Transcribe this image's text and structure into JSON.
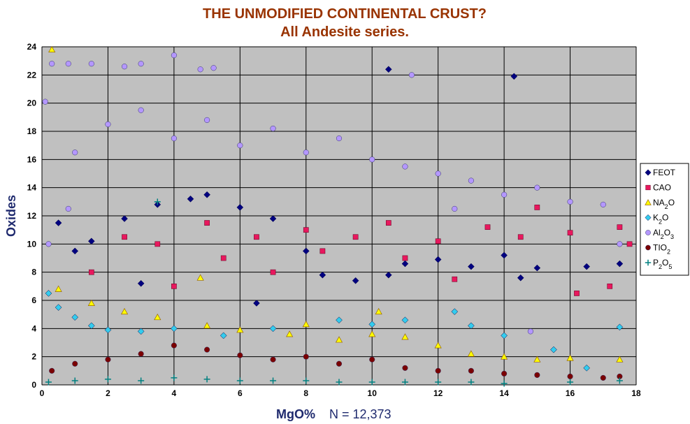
{
  "chart_data": {
    "type": "scatter",
    "title": "THE UNMODIFIED CONTINENTAL CRUST?",
    "subtitle": "All Andesite series.",
    "xlabel": "MgO%",
    "xlabel_note": "N = 12,373",
    "ylabel": "Oxides",
    "xlim": [
      0,
      18
    ],
    "ylim": [
      0,
      24
    ],
    "x_ticks": [
      0,
      2,
      4,
      6,
      8,
      10,
      12,
      14,
      16,
      18
    ],
    "y_ticks": [
      0,
      2,
      4,
      6,
      8,
      10,
      12,
      14,
      16,
      18,
      20,
      22,
      24
    ],
    "grid": true,
    "plot_background": "#c0c0c0",
    "legend_position": "right",
    "series": [
      {
        "name": "FEOT",
        "marker": "diamond",
        "color": "#000080",
        "points": [
          [
            0.5,
            11.5
          ],
          [
            1.5,
            10.2
          ],
          [
            2.5,
            11.8
          ],
          [
            3.5,
            12.8
          ],
          [
            4.5,
            13.2
          ],
          [
            5.0,
            13.5
          ],
          [
            6.0,
            12.6
          ],
          [
            7.0,
            11.8
          ],
          [
            8.0,
            9.5
          ],
          [
            8.5,
            7.8
          ],
          [
            9.5,
            7.4
          ],
          [
            10.5,
            7.8
          ],
          [
            11.0,
            8.6
          ],
          [
            12.0,
            8.9
          ],
          [
            13.0,
            8.4
          ],
          [
            14.0,
            9.2
          ],
          [
            14.5,
            7.6
          ],
          [
            15.0,
            8.3
          ],
          [
            16.5,
            8.4
          ],
          [
            17.5,
            8.6
          ],
          [
            10.5,
            22.4
          ],
          [
            14.3,
            21.9
          ],
          [
            1.0,
            9.5
          ],
          [
            3.0,
            7.2
          ],
          [
            6.5,
            5.8
          ]
        ]
      },
      {
        "name": "CAO",
        "marker": "square",
        "color": "#e8185e",
        "points": [
          [
            1.5,
            8.0
          ],
          [
            2.5,
            10.5
          ],
          [
            3.5,
            10.0
          ],
          [
            4.0,
            7.0
          ],
          [
            5.0,
            11.5
          ],
          [
            5.5,
            9.0
          ],
          [
            6.5,
            10.5
          ],
          [
            7.0,
            8.0
          ],
          [
            8.0,
            11.0
          ],
          [
            8.5,
            9.5
          ],
          [
            9.5,
            10.5
          ],
          [
            10.5,
            11.5
          ],
          [
            11.0,
            9.0
          ],
          [
            12.0,
            10.2
          ],
          [
            12.5,
            7.5
          ],
          [
            13.5,
            11.2
          ],
          [
            14.5,
            10.5
          ],
          [
            15.0,
            12.6
          ],
          [
            16.0,
            10.8
          ],
          [
            17.5,
            11.2
          ],
          [
            17.8,
            10.0
          ],
          [
            17.2,
            7.0
          ],
          [
            16.2,
            6.5
          ]
        ]
      },
      {
        "name": "NA2O",
        "marker": "triangle",
        "color": "#ffff00",
        "points": [
          [
            0.3,
            23.8
          ],
          [
            0.5,
            6.8
          ],
          [
            1.5,
            5.8
          ],
          [
            2.5,
            5.2
          ],
          [
            3.5,
            4.8
          ],
          [
            5.0,
            4.2
          ],
          [
            6.0,
            3.9
          ],
          [
            7.5,
            3.6
          ],
          [
            8.0,
            4.3
          ],
          [
            9.0,
            3.2
          ],
          [
            10.0,
            3.6
          ],
          [
            11.0,
            3.4
          ],
          [
            12.0,
            2.8
          ],
          [
            13.0,
            2.2
          ],
          [
            14.0,
            2.0
          ],
          [
            15.0,
            1.8
          ],
          [
            16.0,
            1.9
          ],
          [
            17.5,
            1.8
          ],
          [
            4.8,
            7.6
          ],
          [
            10.2,
            5.2
          ]
        ]
      },
      {
        "name": "K2O",
        "marker": "diamond",
        "color": "#33ccee",
        "points": [
          [
            0.2,
            6.5
          ],
          [
            0.5,
            5.5
          ],
          [
            1.0,
            4.8
          ],
          [
            1.5,
            4.2
          ],
          [
            2.0,
            3.9
          ],
          [
            3.0,
            3.8
          ],
          [
            4.0,
            4.0
          ],
          [
            5.5,
            3.5
          ],
          [
            7.0,
            4.0
          ],
          [
            9.0,
            4.6
          ],
          [
            10.0,
            4.3
          ],
          [
            11.0,
            4.6
          ],
          [
            12.5,
            5.2
          ],
          [
            13.0,
            4.2
          ],
          [
            14.0,
            3.5
          ],
          [
            15.5,
            2.5
          ],
          [
            17.5,
            4.1
          ],
          [
            16.5,
            1.2
          ]
        ]
      },
      {
        "name": "AL2O3",
        "marker": "circle",
        "color": "#b497ff",
        "points": [
          [
            0.1,
            20.1
          ],
          [
            0.3,
            22.8
          ],
          [
            0.8,
            22.8
          ],
          [
            1.5,
            22.8
          ],
          [
            2.5,
            22.6
          ],
          [
            3.0,
            22.8
          ],
          [
            4.0,
            23.4
          ],
          [
            4.8,
            22.4
          ],
          [
            5.2,
            22.5
          ],
          [
            1.0,
            16.5
          ],
          [
            2.0,
            18.5
          ],
          [
            3.0,
            19.5
          ],
          [
            4.0,
            17.5
          ],
          [
            5.0,
            18.8
          ],
          [
            6.0,
            17.0
          ],
          [
            7.0,
            18.2
          ],
          [
            8.0,
            16.5
          ],
          [
            9.0,
            17.5
          ],
          [
            10.0,
            16.0
          ],
          [
            11.0,
            15.5
          ],
          [
            11.2,
            22.0
          ],
          [
            12.0,
            15.0
          ],
          [
            13.0,
            14.5
          ],
          [
            14.0,
            13.5
          ],
          [
            15.0,
            14.0
          ],
          [
            16.0,
            13.0
          ],
          [
            17.0,
            12.8
          ],
          [
            17.5,
            10.0
          ],
          [
            14.8,
            3.8
          ],
          [
            0.2,
            10.0
          ],
          [
            0.8,
            12.5
          ],
          [
            12.5,
            12.5
          ]
        ]
      },
      {
        "name": "TIO2",
        "marker": "circle",
        "color": "#7b0000",
        "points": [
          [
            0.3,
            1.0
          ],
          [
            1.0,
            1.5
          ],
          [
            2.0,
            1.8
          ],
          [
            3.0,
            2.2
          ],
          [
            4.0,
            2.8
          ],
          [
            5.0,
            2.5
          ],
          [
            6.0,
            2.1
          ],
          [
            7.0,
            1.8
          ],
          [
            8.0,
            2.0
          ],
          [
            9.0,
            1.5
          ],
          [
            10.0,
            1.8
          ],
          [
            11.0,
            1.2
          ],
          [
            12.0,
            1.0
          ],
          [
            13.0,
            1.0
          ],
          [
            14.0,
            0.8
          ],
          [
            15.0,
            0.7
          ],
          [
            16.0,
            0.6
          ],
          [
            17.0,
            0.5
          ],
          [
            17.5,
            0.6
          ]
        ]
      },
      {
        "name": "P2O5",
        "marker": "plus",
        "color": "#008080",
        "points": [
          [
            0.2,
            0.2
          ],
          [
            1.0,
            0.3
          ],
          [
            2.0,
            0.4
          ],
          [
            3.0,
            0.3
          ],
          [
            3.5,
            13.0
          ],
          [
            4.0,
            0.5
          ],
          [
            5.0,
            0.4
          ],
          [
            6.0,
            0.3
          ],
          [
            7.0,
            0.3
          ],
          [
            8.0,
            0.3
          ],
          [
            9.0,
            0.2
          ],
          [
            10.0,
            0.2
          ],
          [
            11.0,
            0.2
          ],
          [
            12.0,
            0.2
          ],
          [
            13.0,
            0.2
          ],
          [
            14.0,
            0.1
          ],
          [
            16.0,
            0.2
          ],
          [
            17.5,
            0.3
          ]
        ]
      }
    ]
  },
  "legend": {
    "items": [
      {
        "main": "FEOT",
        "parts": []
      },
      {
        "main": "CAO",
        "parts": []
      },
      {
        "main": "NA",
        "parts": [
          {
            "t": "2",
            "sub": true
          },
          {
            "t": "O",
            "sub": false
          }
        ]
      },
      {
        "main": "K",
        "parts": [
          {
            "t": "2",
            "sub": true
          },
          {
            "t": "O",
            "sub": false
          }
        ]
      },
      {
        "main": "Al",
        "parts": [
          {
            "t": "2",
            "sub": true
          },
          {
            "t": "O",
            "sub": false
          },
          {
            "t": "3",
            "sub": true
          }
        ]
      },
      {
        "main": "TIO",
        "parts": [
          {
            "t": "2",
            "sub": true
          }
        ]
      },
      {
        "main": "P",
        "parts": [
          {
            "t": "2",
            "sub": true
          },
          {
            "t": "O",
            "sub": false
          },
          {
            "t": "5",
            "sub": true
          }
        ]
      }
    ]
  }
}
